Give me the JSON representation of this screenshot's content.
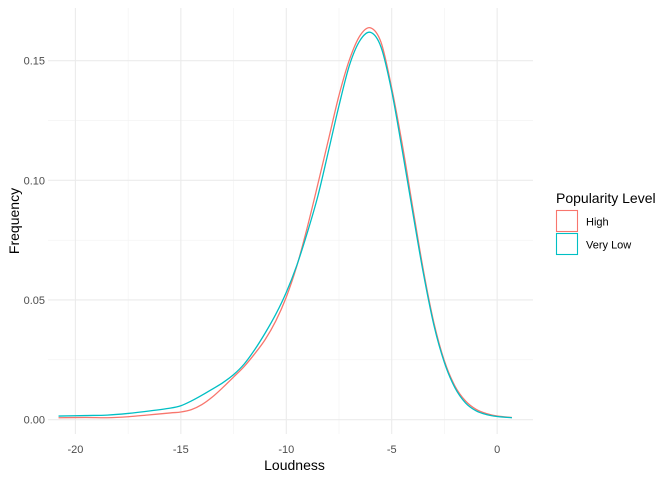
{
  "chart_data": {
    "type": "line",
    "title": "",
    "xlabel": "Loudness",
    "ylabel": "Frequency",
    "xlim": [
      -21.3,
      1.7
    ],
    "ylim": [
      -0.006,
      0.172
    ],
    "x_ticks": [
      -20,
      -15,
      -10,
      -5,
      0
    ],
    "x_tick_labels": [
      "-20",
      "-15",
      "-10",
      "-5",
      "0"
    ],
    "y_ticks": [
      0.0,
      0.05,
      0.1,
      0.15
    ],
    "y_tick_labels": [
      "0.00",
      "0.05",
      "0.10",
      "0.15"
    ],
    "grid": true,
    "legend": {
      "title": "Popularity Level",
      "position": "right"
    },
    "series": [
      {
        "name": "High",
        "color": "#F8766D",
        "x": [
          -20.8,
          -19.5,
          -18.5,
          -17.5,
          -16.5,
          -15.5,
          -15.0,
          -14.5,
          -14.0,
          -13.5,
          -13.0,
          -12.5,
          -12.0,
          -11.5,
          -11.0,
          -10.5,
          -10.0,
          -9.5,
          -9.0,
          -8.5,
          -8.0,
          -7.5,
          -7.0,
          -6.5,
          -6.0,
          -5.5,
          -5.0,
          -4.5,
          -4.0,
          -3.5,
          -3.0,
          -2.5,
          -2.0,
          -1.5,
          -1.0,
          -0.5,
          0.0,
          0.7
        ],
        "values": [
          0.0008,
          0.0009,
          0.0008,
          0.0012,
          0.002,
          0.0028,
          0.0032,
          0.0042,
          0.0063,
          0.0095,
          0.0135,
          0.0178,
          0.0222,
          0.0275,
          0.0335,
          0.0412,
          0.0512,
          0.0642,
          0.0805,
          0.0985,
          0.117,
          0.1355,
          0.1505,
          0.1605,
          0.1637,
          0.1575,
          0.1385,
          0.115,
          0.0885,
          0.0625,
          0.0405,
          0.0245,
          0.014,
          0.0078,
          0.0043,
          0.0025,
          0.0015,
          0.0009
        ]
      },
      {
        "name": "Very Low",
        "color": "#00BFC4",
        "x": [
          -20.8,
          -19.5,
          -18.5,
          -17.5,
          -16.5,
          -15.5,
          -15.0,
          -14.5,
          -14.0,
          -13.5,
          -13.0,
          -12.5,
          -12.0,
          -11.5,
          -11.0,
          -10.5,
          -10.0,
          -9.5,
          -9.0,
          -8.5,
          -8.0,
          -7.5,
          -7.0,
          -6.5,
          -6.0,
          -5.5,
          -5.0,
          -4.5,
          -4.0,
          -3.5,
          -3.0,
          -2.5,
          -2.0,
          -1.5,
          -1.0,
          -0.5,
          0.0,
          0.7
        ],
        "values": [
          0.0015,
          0.0017,
          0.0019,
          0.0026,
          0.0036,
          0.0048,
          0.0058,
          0.0078,
          0.0102,
          0.0128,
          0.0155,
          0.0188,
          0.0232,
          0.0292,
          0.0362,
          0.044,
          0.0532,
          0.0645,
          0.0782,
          0.0935,
          0.1122,
          0.1312,
          0.1482,
          0.1585,
          0.1618,
          0.1555,
          0.1372,
          0.1125,
          0.0865,
          0.0612,
          0.0395,
          0.0238,
          0.0133,
          0.007,
          0.0037,
          0.0021,
          0.0013,
          0.0008
        ]
      }
    ]
  }
}
